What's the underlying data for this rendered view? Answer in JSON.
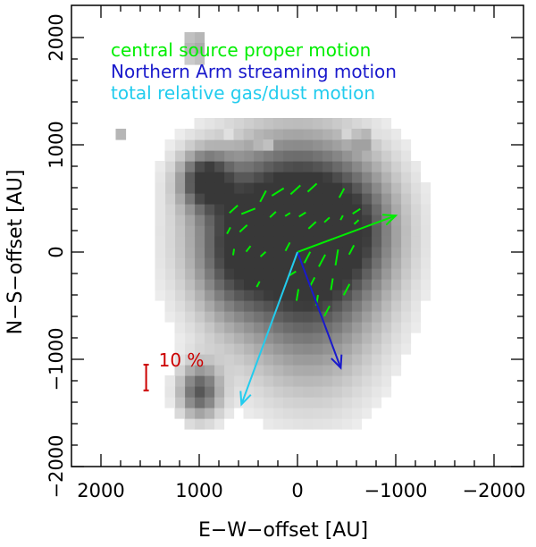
{
  "chart_data": {
    "type": "heatmap",
    "xlabel": "E−W−offset [AU]",
    "ylabel": "N−S−offset [AU]",
    "xlim": [
      2300,
      -2300
    ],
    "ylim": [
      -2000,
      2300
    ],
    "x_ticks": [
      2000,
      1000,
      0,
      -1000,
      -2000
    ],
    "x_tick_labels": [
      "2000",
      "1000",
      "0",
      "−1000",
      "−2000"
    ],
    "y_ticks": [
      2000,
      1000,
      0,
      -1000,
      -2000
    ],
    "y_tick_labels": [
      "2000",
      "1000",
      "0",
      "−1000",
      "−2000"
    ],
    "pixel_size_au": 100,
    "intensity_map": {
      "description": "dust continuum intensity, 0 (white) to 1 (black)",
      "cells": [
        [
          1000,
          2000,
          0.35
        ],
        [
          1100,
          2000,
          0.3
        ],
        [
          1000,
          1900,
          0.4
        ],
        [
          1100,
          1900,
          0.35
        ],
        [
          1000,
          1800,
          0.3
        ],
        [
          1100,
          1800,
          0.25
        ],
        [
          1800,
          1100,
          0.35
        ],
        [
          700,
          1100,
          0.15
        ],
        [
          600,
          1100,
          0.25
        ],
        [
          500,
          1100,
          0.3
        ],
        [
          400,
          1000,
          0.35
        ],
        [
          300,
          1000,
          0.3
        ],
        [
          -500,
          1100,
          0.2
        ],
        [
          -600,
          1100,
          0.3
        ],
        [
          -700,
          1100,
          0.35
        ],
        [
          -800,
          1100,
          0.15
        ],
        [
          -500,
          1000,
          0.4
        ],
        [
          -600,
          1000,
          0.45
        ],
        [
          -700,
          1000,
          0.45
        ],
        [
          -800,
          1000,
          0.25
        ]
      ],
      "blobs": [
        {
          "x": 0,
          "y": 350,
          "sx": 550,
          "sy": 500,
          "amp": 0.78
        },
        {
          "x": 150,
          "y": 50,
          "sx": 700,
          "sy": 700,
          "amp": 0.42
        },
        {
          "x": -150,
          "y": -450,
          "sx": 500,
          "sy": 700,
          "amp": 0.45
        },
        {
          "x": 950,
          "y": 680,
          "sx": 180,
          "sy": 180,
          "amp": 0.78
        },
        {
          "x": 1000,
          "y": -1300,
          "sx": 150,
          "sy": 180,
          "amp": 0.75
        },
        {
          "x": 700,
          "y": 150,
          "sx": 300,
          "sy": 400,
          "amp": 0.2
        },
        {
          "x": -650,
          "y": 200,
          "sx": 300,
          "sy": 400,
          "amp": 0.25
        },
        {
          "x": 700,
          "y": -200,
          "sx": 250,
          "sy": 350,
          "amp": 0.2
        }
      ],
      "extent": {
        "x_min": -1400,
        "x_max": 1400,
        "y_min": -1600,
        "y_max": 1200
      }
    },
    "polarization_vectors": {
      "color": "#00ee00",
      "scale_label": "10 %",
      "scale_color": "#cc0000",
      "scale_x": 1540,
      "scale_y": -1170,
      "scale_length_au": 240,
      "vectors": [
        [
          650,
          400,
          110,
          320
        ],
        [
          500,
          380,
          150,
          340
        ],
        [
          350,
          520,
          120,
          300
        ],
        [
          200,
          560,
          140,
          330
        ],
        [
          20,
          580,
          130,
          320
        ],
        [
          -150,
          600,
          120,
          320
        ],
        [
          -450,
          550,
          100,
          300
        ],
        [
          -600,
          380,
          90,
          330
        ],
        [
          700,
          200,
          70,
          300
        ],
        [
          550,
          220,
          100,
          320
        ],
        [
          250,
          350,
          80,
          320
        ],
        [
          100,
          350,
          60,
          330
        ],
        [
          -50,
          350,
          80,
          330
        ],
        [
          -150,
          250,
          100,
          320
        ],
        [
          -300,
          300,
          70,
          320
        ],
        [
          -450,
          320,
          50,
          300
        ],
        [
          -600,
          280,
          60,
          320
        ],
        [
          650,
          0,
          60,
          280
        ],
        [
          500,
          30,
          70,
          310
        ],
        [
          350,
          -20,
          70,
          320
        ],
        [
          100,
          50,
          90,
          300
        ],
        [
          -100,
          -50,
          120,
          300
        ],
        [
          -250,
          -80,
          130,
          300
        ],
        [
          -400,
          -50,
          150,
          280
        ],
        [
          -550,
          20,
          100,
          300
        ],
        [
          400,
          -300,
          60,
          300
        ],
        [
          50,
          -200,
          80,
          330
        ],
        [
          -150,
          -280,
          100,
          300
        ],
        [
          -350,
          -300,
          110,
          280
        ],
        [
          -200,
          -450,
          100,
          280
        ],
        [
          0,
          -400,
          110,
          280
        ],
        [
          -500,
          -350,
          120,
          300
        ],
        [
          -300,
          -550,
          110,
          300
        ]
      ]
    },
    "motion_vectors": [
      {
        "name": "central source proper motion",
        "color": "#00ee00",
        "dx": -1000,
        "dy": 340
      },
      {
        "name": "Northern Arm streaming motion",
        "color": "#1a1acc",
        "dx": -440,
        "dy": -1080
      },
      {
        "name": "total relative gas/dust motion",
        "color": "#22ccee",
        "dx": 570,
        "dy": -1420
      }
    ],
    "legend": {
      "position": "top-left",
      "entries": [
        {
          "text": "central source proper motion",
          "color": "#00ee00"
        },
        {
          "text": "Northern Arm streaming motion",
          "color": "#1a1acc"
        },
        {
          "text": "total relative gas/dust motion",
          "color": "#22ccee"
        }
      ]
    }
  }
}
